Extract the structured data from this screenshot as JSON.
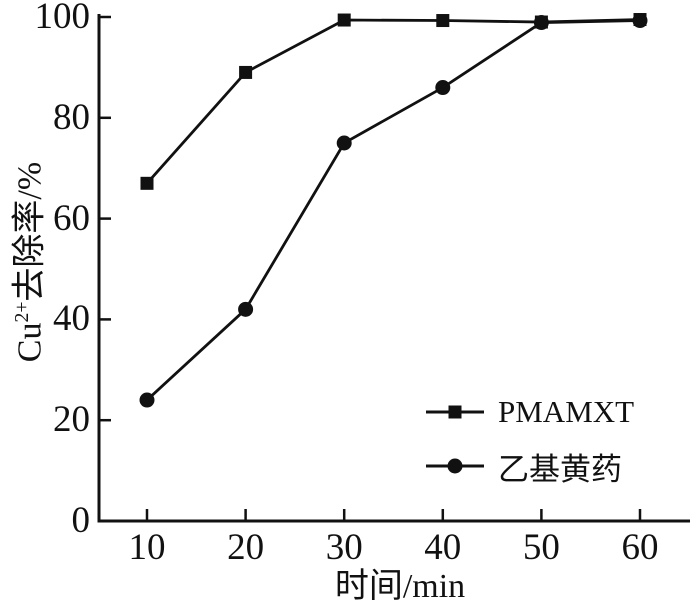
{
  "chart_data": {
    "type": "line",
    "title": "",
    "x": [
      10,
      20,
      30,
      40,
      50,
      60
    ],
    "series": [
      {
        "name": "PMAMXT",
        "marker": "square",
        "values": [
          67,
          89,
          99.4,
          99.3,
          99,
          99.5
        ]
      },
      {
        "name": "乙基黄药",
        "marker": "circle",
        "values": [
          24,
          42,
          75,
          86,
          98.9,
          99.3
        ]
      }
    ],
    "xlabel": "时间/min",
    "ylabel": "Cu²⁺去除率/%",
    "ylabel_parts": {
      "base": "Cu",
      "sup": "2+",
      "rest": "去除率/%"
    },
    "xticks": [
      10,
      20,
      30,
      40,
      50,
      60
    ],
    "yticks": [
      0,
      20,
      40,
      60,
      80,
      100
    ],
    "xlim": [
      5,
      65
    ],
    "ylim": [
      0,
      100
    ],
    "grid": false,
    "legend_position": "inside-lower-right",
    "line_color": "#111111",
    "background": "#ffffff"
  }
}
